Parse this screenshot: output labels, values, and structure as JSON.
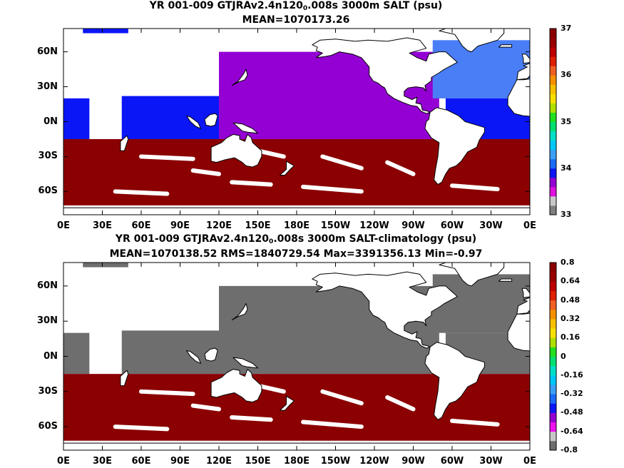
{
  "panels": [
    {
      "title_a": "YR 001-009 GTJRAv2.4n120",
      "title_sub": "0",
      "title_b": ".008s 3000m SALT (psu)",
      "stats": "MEAN=1070173.26",
      "ocean_north_color": "#9400d3",
      "ocean_north_atlantic_color": "#4a7ef7",
      "ocean_indian_color": "#0b16f7",
      "south_color": "#8b0000",
      "colorbar": {
        "colors": [
          "#808080",
          "#c8c8c8",
          "#e010e0",
          "#9400d3",
          "#0b16f7",
          "#1a6bf7",
          "#3aa0f7",
          "#00c8f7",
          "#00e0c8",
          "#00e070",
          "#20e020",
          "#b0e000",
          "#f7e000",
          "#f7c000",
          "#f79000",
          "#f06020",
          "#e02000",
          "#c00000",
          "#9b0000",
          "#8b0000"
        ],
        "ticks": [
          "33",
          "34",
          "35",
          "36",
          "37"
        ]
      },
      "xticks": [
        "0E",
        "30E",
        "60E",
        "90E",
        "120E",
        "150E",
        "180E",
        "150W",
        "120W",
        "90W",
        "60W",
        "30W",
        "0E"
      ],
      "yticks": [
        "60N",
        "30N",
        "0N",
        "30S",
        "60S"
      ]
    },
    {
      "title_a": "YR 001-009 GTJRAv2.4n120",
      "title_sub": "0",
      "title_b": ".008s 3000m SALT-climatology (psu)",
      "stats": "MEAN=1070138.52   RMS=1840729.54   Max=3391356.13   Min=-0.97",
      "ocean_north_color": "#6e6e6e",
      "ocean_north_atlantic_color": "#6e6e6e",
      "ocean_indian_color": "#6e6e6e",
      "south_color": "#8b0000",
      "colorbar": {
        "colors": [
          "#6e6e6e",
          "#c8c8c8",
          "#f010f0",
          "#9400d3",
          "#0b16f7",
          "#1a6bf7",
          "#3aa0f7",
          "#00c8f7",
          "#00e0c8",
          "#00e070",
          "#20e020",
          "#b0e000",
          "#f7e000",
          "#f7c000",
          "#f79000",
          "#f06020",
          "#e02000",
          "#c00000",
          "#9b0000",
          "#8b0000"
        ],
        "ticks": [
          "0.8",
          "0.64",
          "0.48",
          "0.32",
          "0.16",
          "0",
          "-0.16",
          "-0.32",
          "-0.48",
          "-0.64",
          "-0.8"
        ]
      },
      "xticks": [
        "0E",
        "30E",
        "60E",
        "90E",
        "120E",
        "150E",
        "180E",
        "150W",
        "120W",
        "90W",
        "60W",
        "30W",
        "0E"
      ],
      "yticks": [
        "60N",
        "30N",
        "0N",
        "30S",
        "60S"
      ]
    }
  ],
  "chart_data": [
    {
      "type": "heatmap",
      "title": "YR 001-009 GTJRAv2.4n120₀.008s 3000m SALT (psu)",
      "subtitle": "MEAN=1070173.26",
      "xlabel": "",
      "ylabel": "",
      "x_range": [
        0,
        360
      ],
      "y_range": [
        -80,
        80
      ],
      "colorbar_range": [
        33,
        37
      ],
      "regions": [
        {
          "region": "Southern Ocean (south of ~15S)",
          "value": 37
        },
        {
          "region": "North Pacific",
          "value": 33.6
        },
        {
          "region": "North Atlantic",
          "value": 34.3
        },
        {
          "region": "Indian Ocean / Tropical Atlantic",
          "value": 34
        }
      ]
    },
    {
      "type": "heatmap",
      "title": "YR 001-009 GTJRAv2.4n120₀.008s 3000m SALT-climatology (psu)",
      "subtitle": "MEAN=1070138.52   RMS=1840729.54   Max=3391356.13   Min=-0.97",
      "xlabel": "",
      "ylabel": "",
      "x_range": [
        0,
        360
      ],
      "y_range": [
        -80,
        80
      ],
      "colorbar_range": [
        -0.8,
        0.8
      ],
      "regions": [
        {
          "region": "Southern Ocean (south of ~15S)",
          "value": 0.8
        },
        {
          "region": "Northern oceans",
          "value": -0.8
        }
      ]
    }
  ]
}
